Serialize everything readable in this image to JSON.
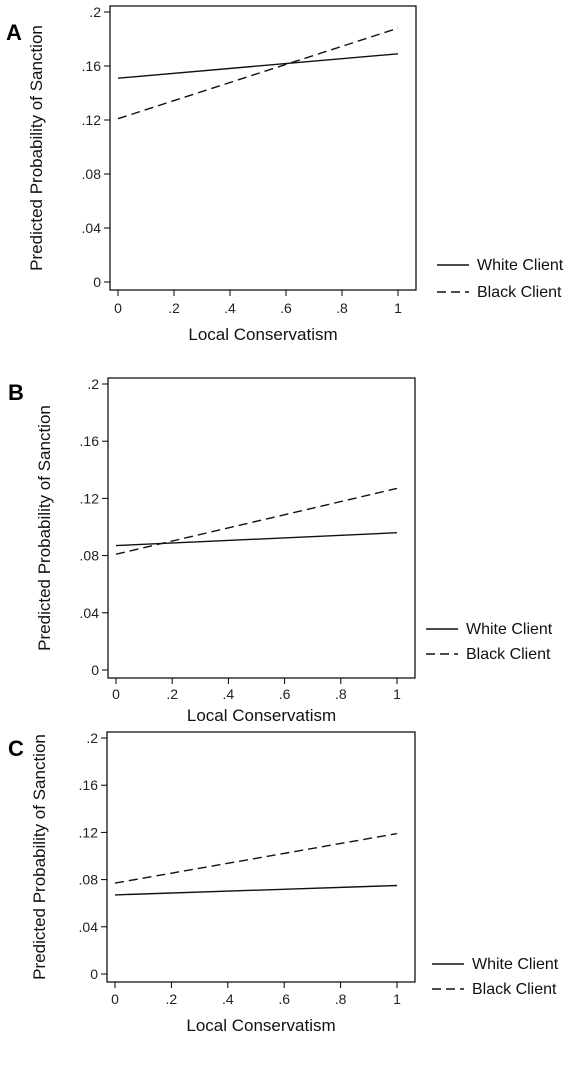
{
  "chart_data": [
    {
      "type": "line",
      "panel_label": "A",
      "xlabel": "Local Conservatism",
      "ylabel": "Predicted Probability of Sanction",
      "xlim": [
        0,
        1
      ],
      "ylim": [
        0,
        0.2
      ],
      "x_ticks": [
        "0",
        ".2",
        ".4",
        ".6",
        ".8",
        "1"
      ],
      "y_ticks": [
        "0",
        ".04",
        ".08",
        ".12",
        ".16",
        ".2"
      ],
      "grid": false,
      "legend_position": "right",
      "series": [
        {
          "name": "White Client",
          "style": "solid",
          "x": [
            0,
            1
          ],
          "y": [
            0.151,
            0.169
          ]
        },
        {
          "name": "Black Client",
          "style": "dashed",
          "x": [
            0,
            1
          ],
          "y": [
            0.121,
            0.188
          ]
        }
      ]
    },
    {
      "type": "line",
      "panel_label": "B",
      "xlabel": "Local Conservatism",
      "ylabel": "Predicted Probability of Sanction",
      "xlim": [
        0,
        1
      ],
      "ylim": [
        0,
        0.2
      ],
      "x_ticks": [
        "0",
        ".2",
        ".4",
        ".6",
        ".8",
        "1"
      ],
      "y_ticks": [
        "0",
        ".04",
        ".08",
        ".12",
        ".16",
        ".2"
      ],
      "grid": false,
      "legend_position": "right",
      "series": [
        {
          "name": "White Client",
          "style": "solid",
          "x": [
            0,
            1
          ],
          "y": [
            0.087,
            0.096
          ]
        },
        {
          "name": "Black Client",
          "style": "dashed",
          "x": [
            0,
            1
          ],
          "y": [
            0.081,
            0.127
          ]
        }
      ]
    },
    {
      "type": "line",
      "panel_label": "C",
      "xlabel": "Local Conservatism",
      "ylabel": "Predicted Probability of Sanction",
      "xlim": [
        0,
        1
      ],
      "ylim": [
        0,
        0.2
      ],
      "x_ticks": [
        "0",
        ".2",
        ".4",
        ".6",
        ".8",
        "1"
      ],
      "y_ticks": [
        "0",
        ".04",
        ".08",
        ".12",
        ".16",
        ".2"
      ],
      "grid": false,
      "legend_position": "right",
      "series": [
        {
          "name": "White Client",
          "style": "solid",
          "x": [
            0,
            1
          ],
          "y": [
            0.067,
            0.075
          ]
        },
        {
          "name": "Black Client",
          "style": "dashed",
          "x": [
            0,
            1
          ],
          "y": [
            0.077,
            0.119
          ]
        }
      ]
    }
  ]
}
